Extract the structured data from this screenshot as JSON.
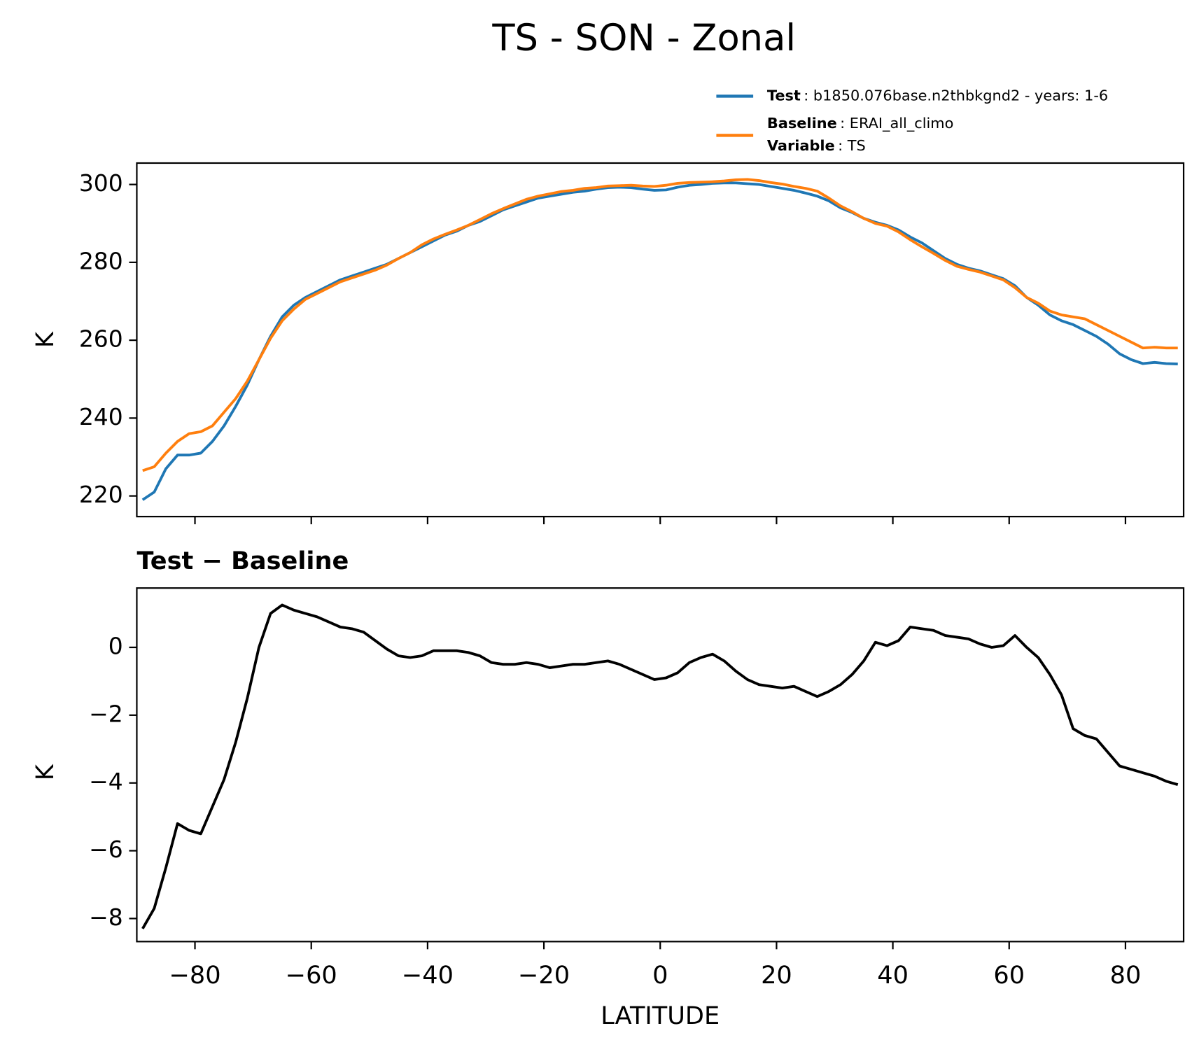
{
  "title": "TS - SON - Zonal",
  "chart_data": [
    {
      "type": "line",
      "ylabel": "K",
      "x": [
        -89,
        -87,
        -85,
        -83,
        -81,
        -79,
        -77,
        -75,
        -73,
        -71,
        -69,
        -67,
        -65,
        -63,
        -61,
        -59,
        -57,
        -55,
        -53,
        -51,
        -49,
        -47,
        -45,
        -43,
        -41,
        -39,
        -37,
        -35,
        -33,
        -31,
        -29,
        -27,
        -25,
        -23,
        -21,
        -19,
        -17,
        -15,
        -13,
        -11,
        -9,
        -7,
        -5,
        -3,
        -1,
        1,
        3,
        5,
        7,
        9,
        11,
        13,
        15,
        17,
        19,
        21,
        23,
        25,
        27,
        29,
        31,
        33,
        35,
        37,
        39,
        41,
        43,
        45,
        47,
        49,
        51,
        53,
        55,
        57,
        59,
        61,
        63,
        65,
        67,
        69,
        71,
        73,
        75,
        77,
        79,
        81,
        83,
        85,
        87,
        89
      ],
      "series": [
        {
          "name": "Test",
          "description": ": b1850.076base.n2thbkgnd2 - years: 1-6",
          "color": "#1f77b4",
          "values": [
            219,
            221,
            227,
            230.5,
            230.5,
            231,
            234,
            238,
            243,
            248.5,
            255,
            261,
            266,
            269,
            271,
            272.5,
            274,
            275.5,
            276.5,
            277.5,
            278.5,
            279.5,
            281,
            282.5,
            284,
            285.5,
            287,
            288,
            289.5,
            290.5,
            292,
            293.5,
            294.5,
            295.5,
            296.5,
            297,
            297.5,
            298,
            298.3,
            298.8,
            299.2,
            299.3,
            299.2,
            298.8,
            298.5,
            298.6,
            299.3,
            299.8,
            300,
            300.3,
            300.4,
            300.4,
            300.2,
            300,
            299.5,
            299,
            298.5,
            297.8,
            297,
            295.8,
            294,
            292.8,
            291.3,
            290.3,
            289.5,
            288.3,
            286.5,
            285,
            283,
            281,
            279.5,
            278.5,
            277.8,
            276.8,
            275.8,
            274,
            271,
            269,
            266.5,
            265,
            264,
            262.5,
            261,
            259,
            256.5,
            255,
            254,
            254.3,
            254,
            253.9
          ]
        },
        {
          "name": "Baseline",
          "description": ": ERAI_all_climo",
          "color": "#ff7f0e",
          "values": [
            226.5,
            227.5,
            231,
            234,
            236,
            236.5,
            238,
            241.5,
            245,
            249.5,
            255,
            260.5,
            265,
            268,
            270.5,
            272,
            273.5,
            275,
            276,
            277,
            278,
            279.3,
            281,
            282.5,
            284.5,
            286,
            287.2,
            288.3,
            289.5,
            291,
            292.5,
            293.8,
            295,
            296.2,
            297,
            297.6,
            298.2,
            298.5,
            299,
            299.2,
            299.6,
            299.7,
            299.8,
            299.6,
            299.5,
            299.8,
            300.3,
            300.5,
            300.6,
            300.7,
            300.9,
            301.2,
            301.3,
            301,
            300.5,
            300.1,
            299.5,
            299,
            298.3,
            296.5,
            294.5,
            293,
            291.3,
            290,
            289.3,
            287.8,
            285.8,
            284,
            282.3,
            280.5,
            279,
            278.2,
            277.5,
            276.5,
            275.5,
            273.5,
            271,
            269.5,
            267.5,
            266.5,
            266,
            265.5,
            264,
            262.5,
            261,
            259.5,
            258,
            258.2,
            258,
            258
          ]
        }
      ],
      "legend_extra": {
        "name": "Variable",
        "description": ": TS"
      },
      "xlim": [
        -90,
        90
      ],
      "xticks": [
        -80,
        -60,
        -40,
        -20,
        0,
        20,
        40,
        60,
        80
      ],
      "xtick_labels": false,
      "ylim": [
        214.7,
        305.5
      ],
      "yticks": [
        220,
        240,
        260,
        280,
        300
      ],
      "legend": "upper right"
    },
    {
      "type": "line",
      "title": "Test − Baseline",
      "xlabel": "LATITUDE",
      "ylabel": "K",
      "x": [
        -89,
        -87,
        -85,
        -83,
        -81,
        -79,
        -77,
        -75,
        -73,
        -71,
        -69,
        -67,
        -65,
        -63,
        -61,
        -59,
        -57,
        -55,
        -53,
        -51,
        -49,
        -47,
        -45,
        -43,
        -41,
        -39,
        -37,
        -35,
        -33,
        -31,
        -29,
        -27,
        -25,
        -23,
        -21,
        -19,
        -17,
        -15,
        -13,
        -11,
        -9,
        -7,
        -5,
        -3,
        -1,
        1,
        3,
        5,
        7,
        9,
        11,
        13,
        15,
        17,
        19,
        21,
        23,
        25,
        27,
        29,
        31,
        33,
        35,
        37,
        39,
        41,
        43,
        45,
        47,
        49,
        51,
        53,
        55,
        57,
        59,
        61,
        63,
        65,
        67,
        69,
        71,
        73,
        75,
        77,
        79,
        81,
        83,
        85,
        87,
        89
      ],
      "series": [
        {
          "color": "#000000",
          "values": [
            -8.3,
            -7.7,
            -6.5,
            -5.2,
            -5.4,
            -5.5,
            -4.7,
            -3.9,
            -2.8,
            -1.5,
            0,
            1.0,
            1.25,
            1.1,
            1.0,
            0.9,
            0.75,
            0.6,
            0.55,
            0.45,
            0.2,
            -0.05,
            -0.25,
            -0.3,
            -0.25,
            -0.1,
            -0.1,
            -0.1,
            -0.15,
            -0.25,
            -0.45,
            -0.5,
            -0.5,
            -0.45,
            -0.5,
            -0.6,
            -0.55,
            -0.5,
            -0.5,
            -0.45,
            -0.4,
            -0.5,
            -0.65,
            -0.8,
            -0.95,
            -0.9,
            -0.75,
            -0.45,
            -0.3,
            -0.2,
            -0.4,
            -0.7,
            -0.95,
            -1.1,
            -1.15,
            -1.2,
            -1.15,
            -1.3,
            -1.45,
            -1.3,
            -1.1,
            -0.8,
            -0.4,
            0.15,
            0.05,
            0.2,
            0.6,
            0.55,
            0.5,
            0.35,
            0.3,
            0.25,
            0.1,
            0,
            0.05,
            0.35,
            0,
            -0.3,
            -0.8,
            -1.4,
            -2.4,
            -2.6,
            -2.7,
            -3.1,
            -3.5,
            -3.6,
            -3.7,
            -3.8,
            -3.95,
            -4.05
          ]
        }
      ],
      "xlim": [
        -90,
        90
      ],
      "xticks": [
        {
          "value": -80,
          "label": "−80"
        },
        {
          "value": -60,
          "label": "−60"
        },
        {
          "value": -40,
          "label": "−40"
        },
        {
          "value": -20,
          "label": "−20"
        },
        0,
        20,
        40,
        60,
        80
      ],
      "xtick_labels": true,
      "ylim": [
        -8.68,
        1.75
      ],
      "yticks": [
        {
          "value": -8,
          "label": "−8"
        },
        {
          "value": -6,
          "label": "−6"
        },
        {
          "value": -4,
          "label": "−4"
        },
        {
          "value": -2,
          "label": "−2"
        },
        0
      ]
    }
  ]
}
